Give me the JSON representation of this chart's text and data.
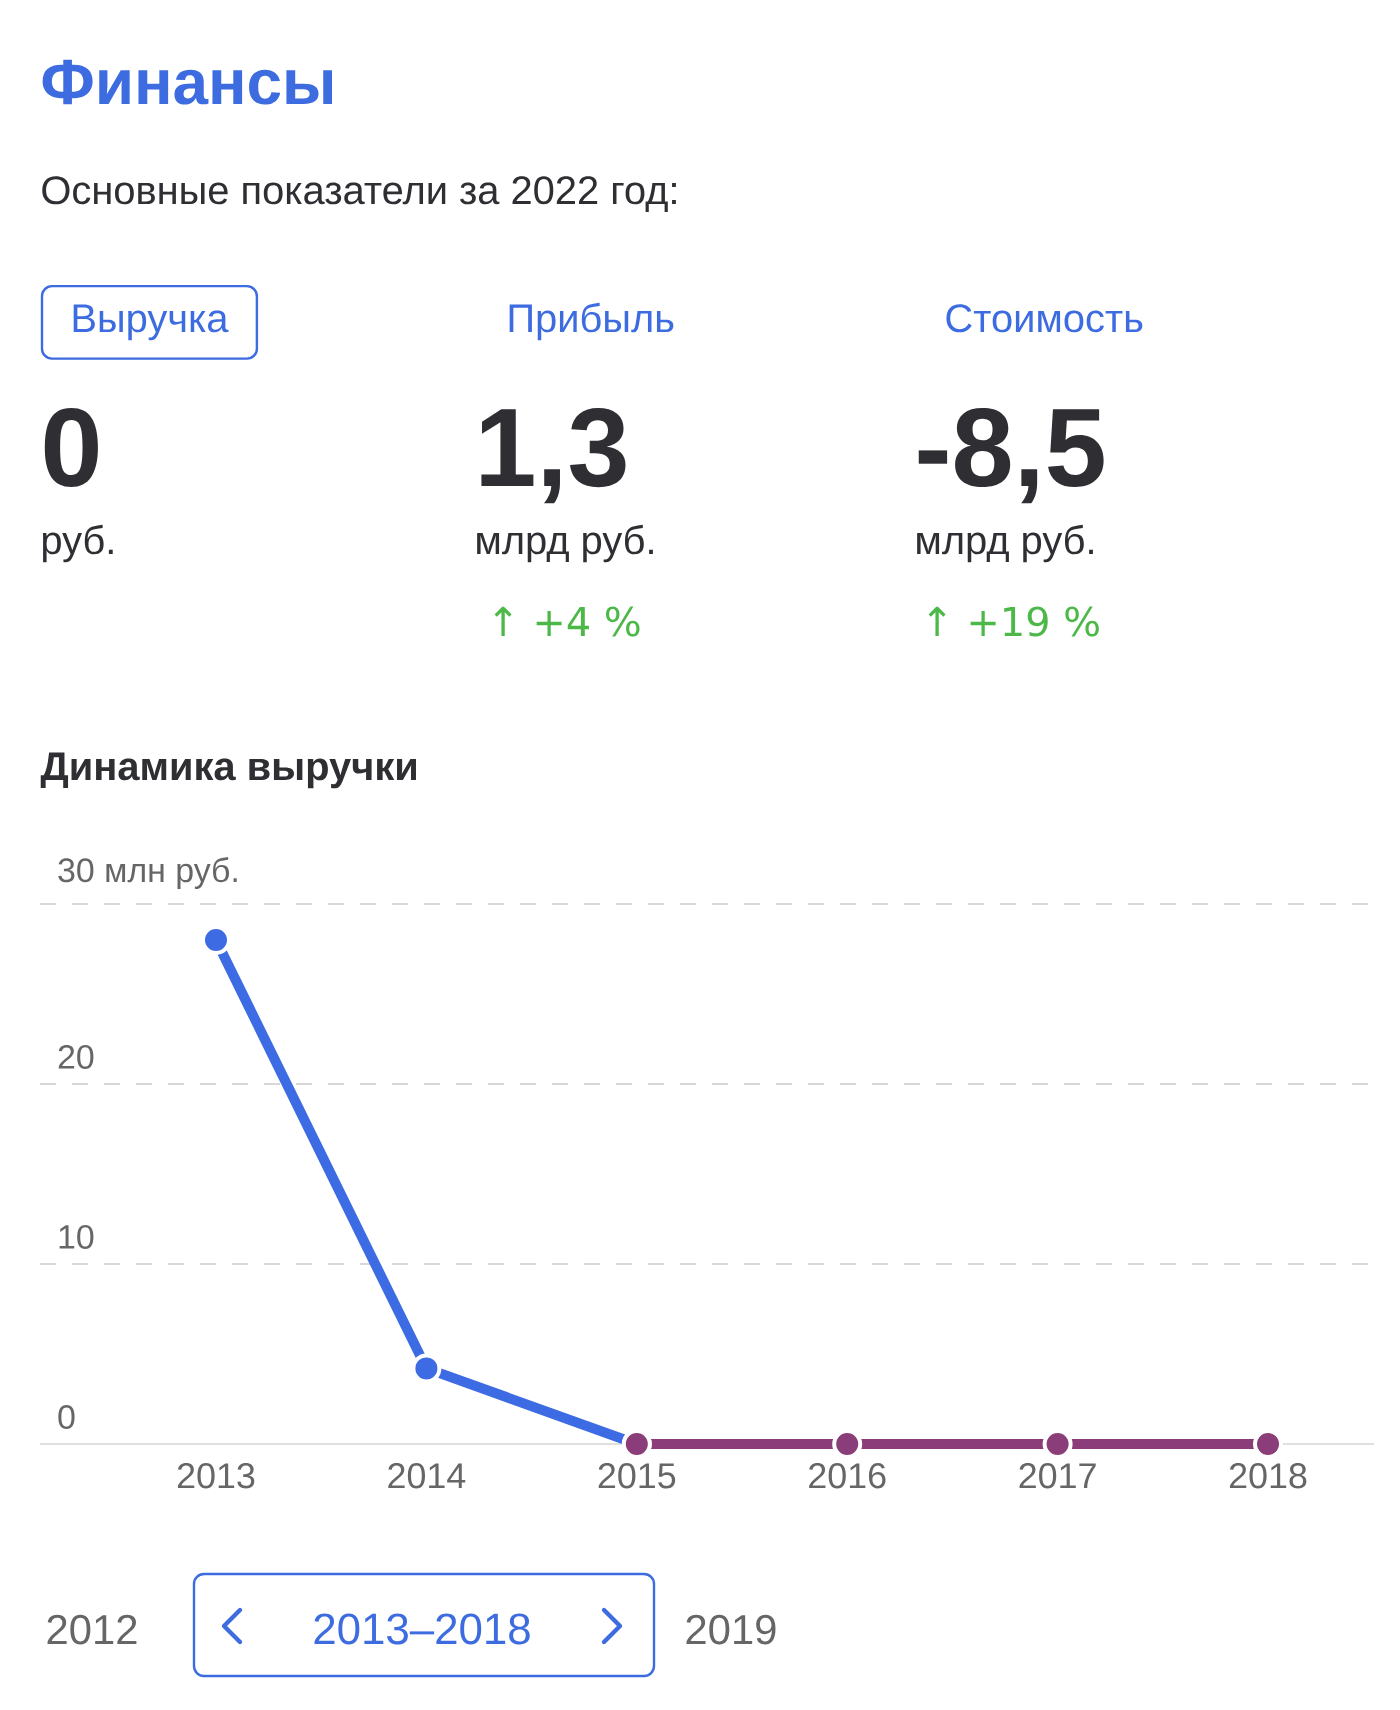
{
  "chart_data": [
    {
      "type": "other",
      "title": "Финансы",
      "subtitle": "Основные показатели за 2022 год:",
      "annotations": [
        "Выручка",
        "0",
        "руб.",
        "Прибыль",
        "1,3",
        "млрд руб.",
        "↑ +4 %",
        "Стоимость",
        "-8,5",
        "млрд руб.",
        "↑ +19 %"
      ]
    },
    {
      "type": "line",
      "title": "Динамика выручки",
      "categories": [
        "2013",
        "2014",
        "2015",
        "2016",
        "2017",
        "2018"
      ],
      "series": [
        {
          "color": "#3d6be3",
          "values": [
            28,
            4.2,
            0,
            null,
            null,
            null
          ]
        },
        {
          "color": "#8a3d78",
          "values": [
            null,
            null,
            0,
            0,
            0,
            0
          ]
        }
      ],
      "ylim": [
        0,
        30
      ],
      "yticks": [
        0,
        10,
        20,
        {
          "value": 30,
          "label": "30 млн руб."
        }
      ],
      "grid": "y",
      "marker": "circle",
      "line_style": "solid",
      "annotations": [
        "2012",
        "2013–2018",
        "2019"
      ]
    }
  ]
}
